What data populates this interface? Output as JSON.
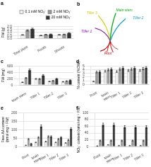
{
  "chart_data": [
    {
      "type": "bar",
      "title": "a",
      "ylabel": "FW (g)",
      "categories": [
        "Total plant",
        "Roots",
        "Shoots"
      ],
      "series": [
        {
          "name": "0.1 mM NO₃⁻",
          "color": "#f0f0f0",
          "values": [
            0.6,
            0.5,
            0.62
          ],
          "errors": [
            0.042,
            0.035,
            0.0434
          ]
        },
        {
          "name": "2 mM NO₃⁻",
          "color": "#999999",
          "values": [
            1.35,
            0.65,
            0.68
          ],
          "errors": [
            0.0945,
            0.0455,
            0.0476
          ]
        },
        {
          "name": "20 mM NO₃⁻",
          "color": "#333333",
          "values": [
            1.6,
            0.7,
            0.9
          ],
          "errors": [
            0.112,
            0.049,
            0.063
          ]
        }
      ],
      "ylim": [
        0,
        2.0
      ],
      "yticks": [
        {
          "value": 0,
          "label": "0.0"
        },
        0.5,
        {
          "value": 1,
          "label": "1.0"
        },
        1.5,
        {
          "value": 2,
          "label": "2.0"
        }
      ],
      "grid": true,
      "legend": "upper right"
    },
    {
      "type": "diagram",
      "title": "b",
      "annotations": [
        "Root",
        "Main stem",
        "Tiller 3",
        "Tiller 2",
        "Tiller 1"
      ],
      "colors": [
        "#cc0000",
        "#00aa00",
        "#cccc00",
        "#0099cc",
        "#8800aa"
      ]
    },
    {
      "type": "bar",
      "title": "c",
      "ylabel": "FW (mg)",
      "categories": [
        "Main stem",
        "Tiller 1",
        "Tiller 2",
        "Tiller 3"
      ],
      "series": [
        {
          "color": "#f0f0f0",
          "values": [
            90,
            195,
            115,
            105
          ],
          "errors": [
            6.3,
            13.65,
            8.05,
            7.35
          ]
        },
        {
          "color": "#999999",
          "values": [
            225,
            195,
            138,
            128
          ],
          "errors": [
            15.75,
            13.65,
            9.66,
            8.96
          ]
        },
        {
          "color": "#333333",
          "values": [
            475,
            310,
            200,
            155
          ],
          "errors": [
            33.25,
            21.7,
            14,
            10.85
          ]
        }
      ],
      "ylim": [
        0,
        600
      ],
      "yticks": [
        0,
        200,
        400,
        600
      ],
      "grid": true
    },
    {
      "type": "bar",
      "title": "d",
      "ylabel": "N content (%DW)",
      "categories": [
        "Root",
        "Main\nstem",
        "Tiller 1",
        "Tiller 2",
        "Tiller 3"
      ],
      "series": [
        {
          "color": "#f0f0f0",
          "values": [
            0.8,
            3.6,
            3.5,
            3.8,
            3.8
          ],
          "errors": [
            0.056,
            0.252,
            0.245,
            0.266,
            0.266
          ]
        },
        {
          "color": "#999999",
          "values": [
            3.4,
            4.0,
            4.2,
            4.2,
            4.3
          ],
          "errors": [
            0.238,
            0.28,
            0.294,
            0.294,
            0.301
          ]
        },
        {
          "color": "#333333",
          "values": [
            3.5,
            4.2,
            4.5,
            4.5,
            4.6
          ],
          "errors": [
            0.245,
            0.294,
            0.315,
            0.315,
            0.322
          ]
        }
      ],
      "ylim": [
        0,
        5
      ],
      "yticks": [
        0,
        1,
        2,
        3,
        4,
        5
      ],
      "grid": true
    },
    {
      "type": "bar",
      "title": "e",
      "ylabel": "Free AA content\n(nmol·mg⁻¹ FW)",
      "categories": [
        "Root",
        "Main\nstem",
        "Tiller 1",
        "Tiller 2",
        "Tiller 3"
      ],
      "series": [
        {
          "color": "#f0f0f0",
          "values": [
            8,
            25,
            30,
            25,
            22
          ],
          "errors": [
            0.56,
            1.75,
            2.1,
            1.75,
            1.54
          ]
        },
        {
          "color": "#999999",
          "values": [
            45,
            55,
            60,
            45,
            40
          ],
          "errors": [
            3.15,
            3.85,
            4.2,
            3.15,
            2.8
          ]
        },
        {
          "color": "#333333",
          "values": [
            18,
            120,
            60,
            55,
            105
          ],
          "errors": [
            1.26,
            8.4,
            4.2,
            3.85,
            7.35
          ]
        }
      ],
      "ylim": [
        0,
        200
      ],
      "yticks": [
        0,
        50,
        100,
        150,
        200
      ],
      "grid": true
    },
    {
      "type": "bar",
      "title": "f",
      "ylabel": "NO₃⁻ content (nmol·mg⁻¹ FW)",
      "categories": [
        "Root",
        "Main\nstem",
        "Tiller 1",
        "Tiller 2",
        "Tiller 3"
      ],
      "series": [
        {
          "color": "#f0f0f0",
          "values": [
            2,
            5,
            3,
            3,
            3
          ],
          "errors": [
            0.14,
            0.35,
            0.21,
            0.21,
            0.21
          ]
        },
        {
          "color": "#999999",
          "values": [
            18,
            18,
            18,
            18,
            18
          ],
          "errors": [
            1.26,
            1.26,
            1.26,
            1.26,
            1.26
          ]
        },
        {
          "color": "#333333",
          "values": [
            65,
            65,
            58,
            58,
            58
          ],
          "errors": [
            4.55,
            4.55,
            4.06,
            4.06,
            4.06
          ]
        }
      ],
      "ylim": [
        0,
        100
      ],
      "yticks": [
        0,
        20,
        40,
        60,
        80,
        100
      ],
      "grid": true
    }
  ]
}
